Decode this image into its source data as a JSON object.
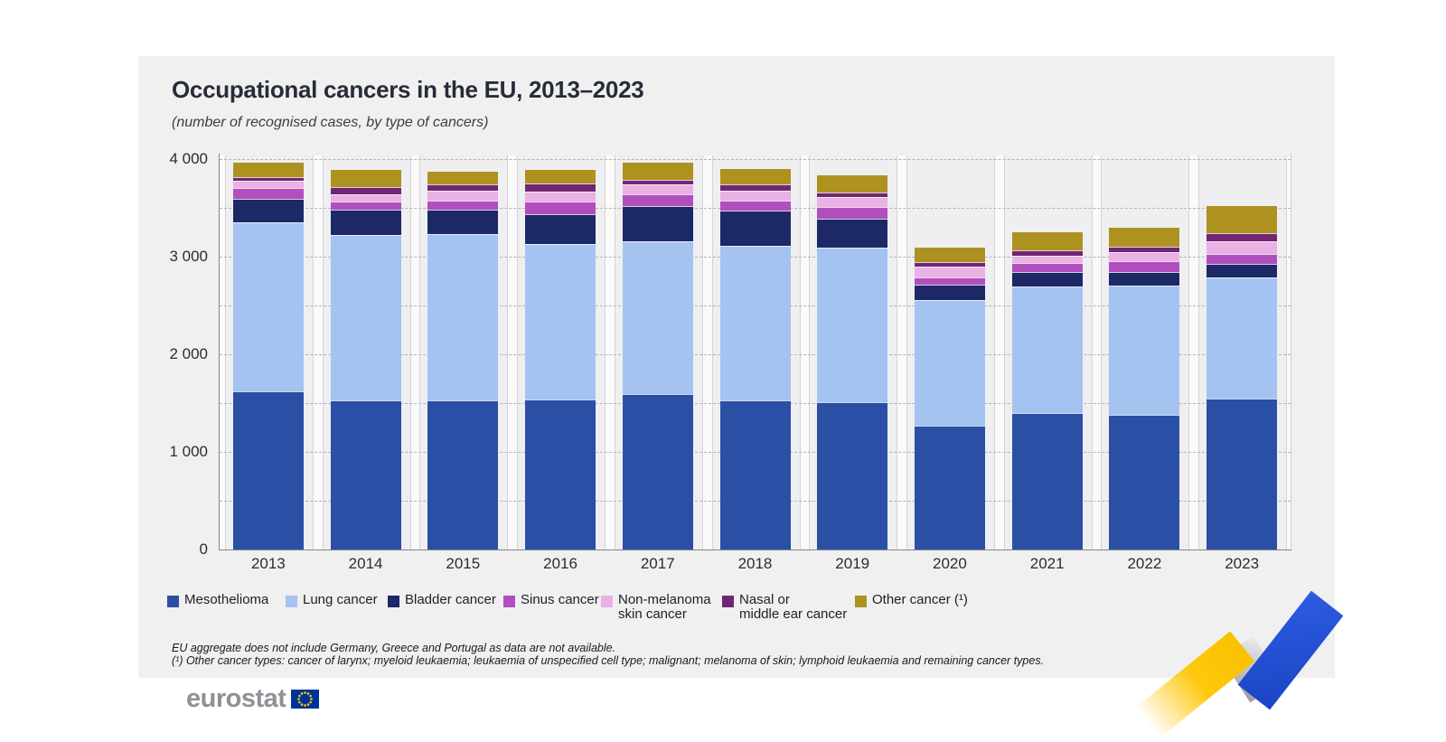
{
  "page": {
    "title": "Occupational cancers in the EU, 2013–2023",
    "subtitle": "(number of recognised cases, by type of cancers)",
    "footnotes": [
      "EU aggregate does not include Germany, Greece and Portugal as data are not available.",
      "(¹) Other cancer types: cancer of larynx; myeloid leukaemia; leukaemia of unspecified cell type; malignant; melanoma of skin; lymphoid leukaemia and remaining cancer types."
    ],
    "logo_text": "eurostat"
  },
  "chart_data": {
    "type": "bar",
    "stacked": true,
    "title": "Occupational cancers in the EU, 2013–2023",
    "subtitle": "(number of recognised cases, by type of cancers)",
    "xlabel": "",
    "ylabel": "number of recognised cases",
    "ylim": [
      0,
      4000
    ],
    "ytick_interval": 500,
    "yticks": [
      0,
      1000,
      2000,
      3000,
      4000
    ],
    "ytick_labels": [
      "0",
      "1 000",
      "2 000",
      "3 000",
      "4 000"
    ],
    "grid": "horizontal-dashed",
    "legend_position": "bottom",
    "categories": [
      "2013",
      "2014",
      "2015",
      "2016",
      "2017",
      "2018",
      "2019",
      "2020",
      "2021",
      "2022",
      "2023"
    ],
    "series": [
      {
        "name": "Mesothelioma",
        "legend_lines": [
          "Mesothelioma"
        ],
        "color": "#2b4fa5",
        "values": [
          1620,
          1530,
          1530,
          1540,
          1590,
          1530,
          1510,
          1270,
          1400,
          1380,
          1550
        ]
      },
      {
        "name": "Lung cancer",
        "legend_lines": [
          "Lung cancer"
        ],
        "color": "#a4c3f1",
        "values": [
          1730,
          1690,
          1700,
          1590,
          1570,
          1580,
          1580,
          1290,
          1290,
          1320,
          1240
        ]
      },
      {
        "name": "Bladder cancer",
        "legend_lines": [
          "Bladder cancer"
        ],
        "color": "#1d2866",
        "values": [
          240,
          260,
          250,
          305,
          360,
          360,
          295,
          155,
          150,
          145,
          140
        ]
      },
      {
        "name": "Sinus cancer",
        "legend_lines": [
          "Sinus cancer"
        ],
        "color": "#b14fbe",
        "values": [
          110,
          85,
          90,
          130,
          120,
          100,
          120,
          70,
          95,
          110,
          95
        ]
      },
      {
        "name": "Non-melanoma skin cancer",
        "legend_lines": [
          "Non-melanoma",
          "skin cancer"
        ],
        "color": "#e9b1e4",
        "values": [
          75,
          75,
          110,
          100,
          100,
          110,
          110,
          115,
          75,
          95,
          130
        ]
      },
      {
        "name": "Nasal or middle ear cancer",
        "legend_lines": [
          "Nasal or",
          "middle ear cancer"
        ],
        "color": "#722573",
        "values": [
          40,
          75,
          65,
          85,
          45,
          60,
          45,
          45,
          55,
          50,
          90
        ]
      },
      {
        "name": "Other cancer (¹)",
        "legend_lines": [
          "Other cancer (¹)"
        ],
        "color": "#ad9220",
        "values": [
          150,
          175,
          130,
          140,
          175,
          160,
          175,
          150,
          185,
          200,
          270
        ]
      }
    ],
    "totals": [
      3965,
      3890,
      3875,
      3890,
      3960,
      3900,
      3835,
      3095,
      3250,
      3300,
      3515
    ]
  },
  "branding": {
    "eu_flag_color": "#003399",
    "eu_star_color": "#ffcc00",
    "ribbon_yellow": "#fec80c",
    "ribbon_blue": "#2553d6"
  }
}
